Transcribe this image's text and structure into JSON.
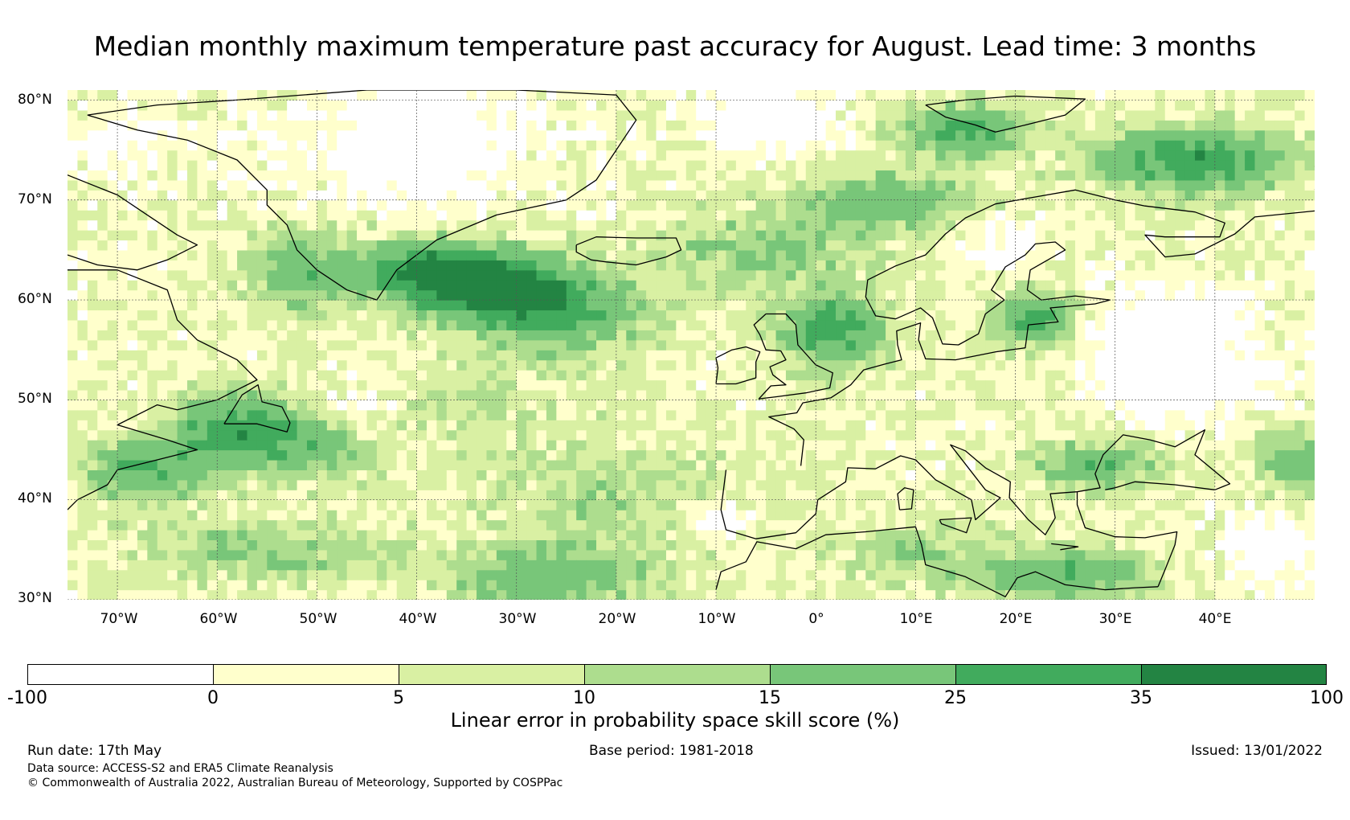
{
  "title": "Median monthly maximum temperature past accuracy for August. Lead time: 3 months",
  "lat_labels": [
    "80°N",
    "70°N",
    "60°N",
    "50°N",
    "40°N",
    "30°N"
  ],
  "lon_labels": [
    "70°W",
    "60°W",
    "50°W",
    "40°W",
    "30°W",
    "20°W",
    "10°W",
    "0°",
    "10°E",
    "20°E",
    "30°E",
    "40°E"
  ],
  "colorbar": {
    "label": "Linear error in probability space skill score (%)",
    "ticks": [
      "-100",
      "0",
      "5",
      "10",
      "15",
      "25",
      "35",
      "100"
    ],
    "colors": [
      "#ffffff",
      "#ffffcc",
      "#d9f0a3",
      "#addd8e",
      "#78c679",
      "#41ab5d",
      "#238443"
    ]
  },
  "footer": {
    "run_date": "Run date: 17th May",
    "base_period": "Base period: 1981-2018",
    "issued": "Issued: 13/01/2022",
    "data_source": "Data source: ACCESS-S2 and ERA5 Climate Reanalysis",
    "copyright": "© Commonwealth of Australia 2022, Australian Bureau of Meteorology, Supported by COSPPac"
  },
  "map_extent": {
    "lon": [
      -75,
      50
    ],
    "lat": [
      30,
      81
    ]
  }
}
